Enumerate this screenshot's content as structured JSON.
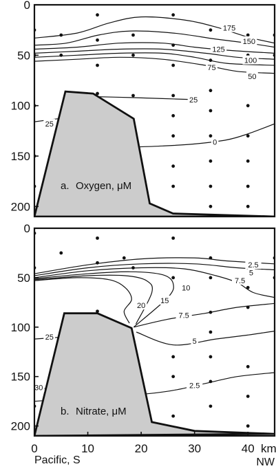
{
  "chart_data": [
    {
      "type": "contour",
      "panel_label": "a.",
      "title": "Oxygen, μM",
      "xlim": [
        0,
        45
      ],
      "ylim": [
        210,
        0
      ],
      "yticks": [
        0,
        50,
        100,
        150,
        200
      ],
      "contour_labels": [
        {
          "text": "175",
          "x": 36.5,
          "y": 23
        },
        {
          "text": "150",
          "x": 40.2,
          "y": 36
        },
        {
          "text": "125",
          "x": 34.5,
          "y": 44
        },
        {
          "text": "100",
          "x": 40.5,
          "y": 55
        },
        {
          "text": "75",
          "x": 33.2,
          "y": 62
        },
        {
          "text": "50",
          "x": 40.8,
          "y": 71
        },
        {
          "text": "25",
          "x": 29.8,
          "y": 94
        },
        {
          "text": "25",
          "x": 2.8,
          "y": 118
        },
        {
          "text": "0",
          "x": 33.8,
          "y": 136
        }
      ],
      "contours": [
        {
          "level": "175",
          "points": [
            [
              0,
              33
            ],
            [
              8,
              28
            ],
            [
              14,
              18
            ],
            [
              20,
              12
            ],
            [
              28,
              15
            ],
            [
              34,
              22
            ],
            [
              40,
              32
            ],
            [
              45,
              38
            ]
          ]
        },
        {
          "level": "150",
          "points": [
            [
              0,
              40
            ],
            [
              6,
              38
            ],
            [
              12,
              30
            ],
            [
              18,
              26
            ],
            [
              26,
              28
            ],
            [
              34,
              34
            ],
            [
              40,
              38
            ],
            [
              45,
              42
            ]
          ]
        },
        {
          "level": "125",
          "points": [
            [
              0,
              44
            ],
            [
              8,
              42
            ],
            [
              16,
              38
            ],
            [
              24,
              38
            ],
            [
              30,
              42
            ],
            [
              36,
              45
            ],
            [
              45,
              48
            ]
          ]
        },
        {
          "level": "100",
          "points": [
            [
              0,
              48
            ],
            [
              8,
              46
            ],
            [
              16,
              44
            ],
            [
              24,
              44
            ],
            [
              32,
              48
            ],
            [
              38,
              52
            ],
            [
              45,
              54
            ]
          ]
        },
        {
          "level": "75",
          "points": [
            [
              0,
              52
            ],
            [
              8,
              50
            ],
            [
              16,
              48
            ],
            [
              24,
              48
            ],
            [
              30,
              52
            ],
            [
              36,
              58
            ],
            [
              45,
              60
            ]
          ]
        },
        {
          "level": "50",
          "points": [
            [
              0,
              56
            ],
            [
              8,
              54
            ],
            [
              16,
              52
            ],
            [
              24,
              54
            ],
            [
              32,
              60
            ],
            [
              38,
              66
            ],
            [
              45,
              68
            ]
          ]
        },
        {
          "level": "25",
          "points": [
            [
              11,
              91
            ],
            [
              18,
              92
            ],
            [
              24,
              93
            ],
            [
              30,
              94
            ]
          ]
        },
        {
          "level": "25",
          "points": [
            [
              0,
              116
            ],
            [
              5.8,
              112
            ]
          ]
        },
        {
          "level": "0",
          "points": [
            [
              18.6,
              141
            ],
            [
              24,
              140
            ],
            [
              30,
              138
            ],
            [
              36,
              134
            ],
            [
              40,
              128
            ],
            [
              45,
              118
            ]
          ]
        }
      ],
      "seafloor": [
        [
          0,
          210
        ],
        [
          5.8,
          86
        ],
        [
          11,
          88
        ],
        [
          18.6,
          113
        ],
        [
          21.6,
          197
        ],
        [
          26,
          207
        ],
        [
          45,
          210
        ]
      ],
      "samples": [
        [
          0,
          25
        ],
        [
          0,
          50
        ],
        [
          0,
          100
        ],
        [
          0,
          150
        ],
        [
          0,
          180
        ],
        [
          5,
          30
        ],
        [
          5,
          50
        ],
        [
          11.8,
          10
        ],
        [
          11.8,
          35
        ],
        [
          11.8,
          60
        ],
        [
          11.8,
          88
        ],
        [
          18.5,
          30
        ],
        [
          18.5,
          50
        ],
        [
          18.5,
          90
        ],
        [
          26,
          10
        ],
        [
          26,
          40
        ],
        [
          26,
          60
        ],
        [
          26,
          90
        ],
        [
          26,
          110
        ],
        [
          26,
          130
        ],
        [
          26,
          160
        ],
        [
          26,
          180
        ],
        [
          33,
          25
        ],
        [
          33,
          55
        ],
        [
          33,
          85
        ],
        [
          33,
          105
        ],
        [
          33,
          130
        ],
        [
          33,
          155
        ],
        [
          33,
          180
        ],
        [
          33,
          200
        ],
        [
          40,
          30
        ],
        [
          40,
          50
        ],
        [
          40,
          100
        ],
        [
          40,
          130
        ],
        [
          40,
          155
        ],
        [
          40,
          180
        ],
        [
          40,
          200
        ],
        [
          45,
          30
        ],
        [
          45,
          50
        ]
      ]
    },
    {
      "type": "contour",
      "panel_label": "b.",
      "title": "Nitrate, μM",
      "xlim": [
        0,
        45
      ],
      "ylim": [
        210,
        0
      ],
      "yticks": [
        0,
        50,
        100,
        150,
        200
      ],
      "xticks": [
        0,
        10,
        20,
        30,
        40
      ],
      "xlabel_left": "Pacific, S",
      "xlabel_right_top": "km",
      "xlabel_right_bottom": "NW",
      "contour_labels": [
        {
          "text": "2.5",
          "x": 41.0,
          "y": 37
        },
        {
          "text": "5",
          "x": 40.6,
          "y": 45
        },
        {
          "text": "7.5",
          "x": 38.5,
          "y": 53
        },
        {
          "text": "10",
          "x": 28.4,
          "y": 60
        },
        {
          "text": "15",
          "x": 24.4,
          "y": 73
        },
        {
          "text": "20",
          "x": 20.0,
          "y": 78
        },
        {
          "text": "7.5",
          "x": 28.0,
          "y": 88
        },
        {
          "text": "5",
          "x": 30.0,
          "y": 114
        },
        {
          "text": "2.5",
          "x": 30.0,
          "y": 159
        },
        {
          "text": "25",
          "x": 2.8,
          "y": 110
        },
        {
          "text": "30",
          "x": 0.8,
          "y": 161
        }
      ],
      "contours": [
        {
          "level": "2.5",
          "points": [
            [
              0,
              46
            ],
            [
              10,
              37
            ],
            [
              20,
              31
            ],
            [
              30,
              30
            ],
            [
              36,
              33
            ],
            [
              45,
              36
            ]
          ]
        },
        {
          "level": "5",
          "points": [
            [
              0,
              48
            ],
            [
              10,
              40
            ],
            [
              20,
              36
            ],
            [
              30,
              36
            ],
            [
              38,
              40
            ],
            [
              45,
              42
            ]
          ]
        },
        {
          "level": "7.5",
          "points": [
            [
              0,
              50
            ],
            [
              10,
              43
            ],
            [
              20,
              40
            ],
            [
              28,
              41
            ],
            [
              34,
              48
            ],
            [
              38,
              55
            ],
            [
              41,
              65
            ],
            [
              45,
              70
            ]
          ]
        },
        {
          "level": "10",
          "points": [
            [
              0,
              51
            ],
            [
              10,
              46
            ],
            [
              18,
              44
            ],
            [
              24,
              47
            ],
            [
              26,
              56
            ],
            [
              25,
              70
            ],
            [
              18.6,
              100
            ]
          ]
        },
        {
          "level": "15",
          "points": [
            [
              0,
              52
            ],
            [
              10,
              48
            ],
            [
              17,
              48
            ],
            [
              21,
              53
            ],
            [
              22,
              65
            ],
            [
              19,
              97
            ]
          ]
        },
        {
          "level": "20",
          "points": [
            [
              0,
              53
            ],
            [
              8,
              50
            ],
            [
              14,
              52
            ],
            [
              17,
              60
            ],
            [
              18.2,
              72
            ],
            [
              16.8,
              84
            ],
            [
              17.8,
              96
            ]
          ]
        },
        {
          "level": "7.5",
          "points": [
            [
              18.6,
              100
            ],
            [
              25,
              92
            ],
            [
              32,
              86
            ],
            [
              38,
              80
            ],
            [
              45,
              76
            ]
          ]
        },
        {
          "level": "5",
          "points": [
            [
              19.1,
              105
            ],
            [
              26,
              118
            ],
            [
              34,
              112
            ],
            [
              40,
              108
            ],
            [
              45,
              104
            ]
          ]
        },
        {
          "level": "2.5",
          "points": [
            [
              0,
              175
            ],
            [
              8,
              172
            ],
            [
              14,
              170
            ],
            [
              20,
              168
            ],
            [
              26,
              164
            ],
            [
              32,
              157
            ],
            [
              38,
              150
            ],
            [
              45,
              146
            ]
          ]
        },
        {
          "level": "25",
          "points": [
            [
              0,
              112
            ],
            [
              5.6,
              110
            ]
          ]
        },
        {
          "level": "30",
          "points": [
            [
              0,
              163
            ],
            [
              4,
              161
            ]
          ]
        }
      ],
      "seafloor": [
        [
          0,
          210
        ],
        [
          5.6,
          86
        ],
        [
          11.8,
          86
        ],
        [
          18.2,
          101
        ],
        [
          22,
          196
        ],
        [
          30,
          205
        ],
        [
          45,
          208
        ]
      ],
      "samples": [
        [
          0,
          5
        ],
        [
          0,
          40
        ],
        [
          0,
          180
        ],
        [
          5,
          25
        ],
        [
          11.8,
          10
        ],
        [
          11.8,
          35
        ],
        [
          11.8,
          84
        ],
        [
          16.8,
          30
        ],
        [
          18.5,
          40
        ],
        [
          26,
          10
        ],
        [
          26,
          50
        ],
        [
          26,
          130
        ],
        [
          26,
          150
        ],
        [
          26,
          190
        ],
        [
          33,
          30
        ],
        [
          33,
          50
        ],
        [
          33,
          85
        ],
        [
          33,
          105
        ],
        [
          33,
          130
        ],
        [
          33,
          155
        ],
        [
          33,
          180
        ],
        [
          40,
          40
        ],
        [
          40,
          60
        ],
        [
          40,
          80
        ],
        [
          40,
          140
        ],
        [
          40,
          170
        ],
        [
          40,
          200
        ],
        [
          45,
          30
        ],
        [
          45,
          50
        ]
      ]
    }
  ]
}
